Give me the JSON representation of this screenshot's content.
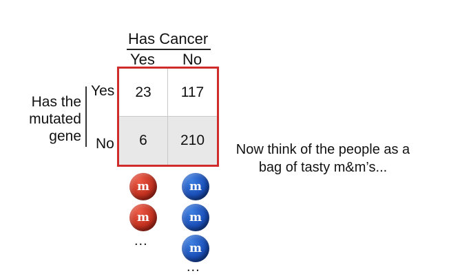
{
  "table": {
    "column_group_title": "Has Cancer",
    "column_labels": [
      "Yes",
      "No"
    ],
    "row_group_title": "Has the mutated gene",
    "row_labels": [
      "Yes",
      "No"
    ],
    "cells": [
      [
        "23",
        "117"
      ],
      [
        "6",
        "210"
      ]
    ]
  },
  "candies": {
    "letter": "m",
    "ellipsis": "...",
    "red_color": "#c2301f",
    "blue_color": "#1a4fb8"
  },
  "caption": "Now think of the people as a bag of tasty m&m’s..."
}
